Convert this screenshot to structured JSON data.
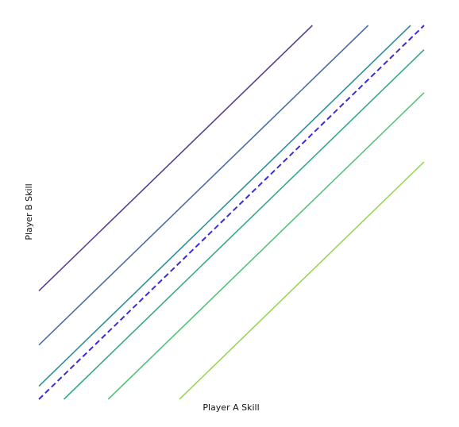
{
  "chart_data": {
    "type": "line",
    "title": "",
    "xlabel": "Player A Skill",
    "ylabel": "Player B Skill",
    "xlim": [
      0,
      100
    ],
    "ylim": [
      0,
      100
    ],
    "grid": false,
    "legend": "none",
    "series": [
      {
        "x": [
          0,
          71
        ],
        "y": [
          29,
          100
        ],
        "color": "#5b3f8f",
        "style": "solid"
      },
      {
        "x": [
          0,
          85.5
        ],
        "y": [
          14.5,
          100
        ],
        "color": "#4d6ea3",
        "style": "solid"
      },
      {
        "x": [
          0,
          96.5
        ],
        "y": [
          3.5,
          100
        ],
        "color": "#2f8f98",
        "style": "solid"
      },
      {
        "x": [
          0,
          100
        ],
        "y": [
          0,
          100
        ],
        "color": "#3b2bdb",
        "style": "dashed"
      },
      {
        "x": [
          6.5,
          100
        ],
        "y": [
          0,
          93.5
        ],
        "color": "#3aa88a",
        "style": "solid"
      },
      {
        "x": [
          18,
          100
        ],
        "y": [
          0,
          82
        ],
        "color": "#58c27a",
        "style": "solid"
      },
      {
        "x": [
          36.5,
          100
        ],
        "y": [
          0,
          63.5
        ],
        "color": "#9ad65a",
        "style": "solid"
      }
    ]
  }
}
